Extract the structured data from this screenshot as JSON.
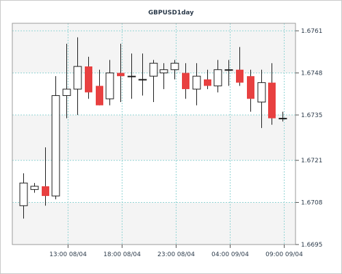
{
  "chart_data": {
    "type": "candlestick",
    "title": "GBPUSD1day",
    "xlabel": "",
    "ylabel": "",
    "ylim": [
      1.6695,
      1.6761
    ],
    "y_ticks": [
      "1.6761",
      "1.6748",
      "1.6735",
      "1.6721",
      "1.6708",
      "1.6695"
    ],
    "x_ticks": [
      "13:00 08/04",
      "18:00 08/04",
      "23:00 08/04",
      "04:00 09/04",
      "09:00 09/04"
    ],
    "grid": true,
    "up_color": "#ffffff",
    "down_color": "#e84040",
    "outline_color": "#1a1a1a",
    "candles": [
      {
        "o": 1.6707,
        "h": 1.6717,
        "l": 1.6703,
        "c": 1.6714
      },
      {
        "o": 1.6712,
        "h": 1.6714,
        "l": 1.6711,
        "c": 1.6713
      },
      {
        "o": 1.6713,
        "h": 1.6725,
        "l": 1.6707,
        "c": 1.671
      },
      {
        "o": 1.671,
        "h": 1.6747,
        "l": 1.6709,
        "c": 1.6741
      },
      {
        "o": 1.6741,
        "h": 1.6757,
        "l": 1.6734,
        "c": 1.6743
      },
      {
        "o": 1.6743,
        "h": 1.6759,
        "l": 1.6735,
        "c": 1.675
      },
      {
        "o": 1.675,
        "h": 1.6753,
        "l": 1.674,
        "c": 1.6742
      },
      {
        "o": 1.6744,
        "h": 1.6749,
        "l": 1.6738,
        "c": 1.6738
      },
      {
        "o": 1.674,
        "h": 1.6752,
        "l": 1.6738,
        "c": 1.6748
      },
      {
        "o": 1.6748,
        "h": 1.6757,
        "l": 1.6739,
        "c": 1.6747
      },
      {
        "o": 1.6747,
        "h": 1.6754,
        "l": 1.674,
        "c": 1.6747
      },
      {
        "o": 1.6746,
        "h": 1.6754,
        "l": 1.6741,
        "c": 1.6746
      },
      {
        "o": 1.6747,
        "h": 1.6752,
        "l": 1.6739,
        "c": 1.6751
      },
      {
        "o": 1.6748,
        "h": 1.6751,
        "l": 1.6743,
        "c": 1.6749
      },
      {
        "o": 1.6749,
        "h": 1.6752,
        "l": 1.6746,
        "c": 1.6751
      },
      {
        "o": 1.6748,
        "h": 1.6751,
        "l": 1.674,
        "c": 1.6743
      },
      {
        "o": 1.6743,
        "h": 1.6751,
        "l": 1.6738,
        "c": 1.6747
      },
      {
        "o": 1.6746,
        "h": 1.6749,
        "l": 1.6743,
        "c": 1.6744
      },
      {
        "o": 1.6744,
        "h": 1.6752,
        "l": 1.6742,
        "c": 1.6749
      },
      {
        "o": 1.6749,
        "h": 1.6752,
        "l": 1.6744,
        "c": 1.6749
      },
      {
        "o": 1.6749,
        "h": 1.6756,
        "l": 1.6744,
        "c": 1.6745
      },
      {
        "o": 1.6747,
        "h": 1.6749,
        "l": 1.6736,
        "c": 1.674
      },
      {
        "o": 1.6739,
        "h": 1.6749,
        "l": 1.6731,
        "c": 1.6745
      },
      {
        "o": 1.6745,
        "h": 1.6751,
        "l": 1.6732,
        "c": 1.6734
      },
      {
        "o": 1.6734,
        "h": 1.6736,
        "l": 1.6733,
        "c": 1.6734
      }
    ]
  }
}
